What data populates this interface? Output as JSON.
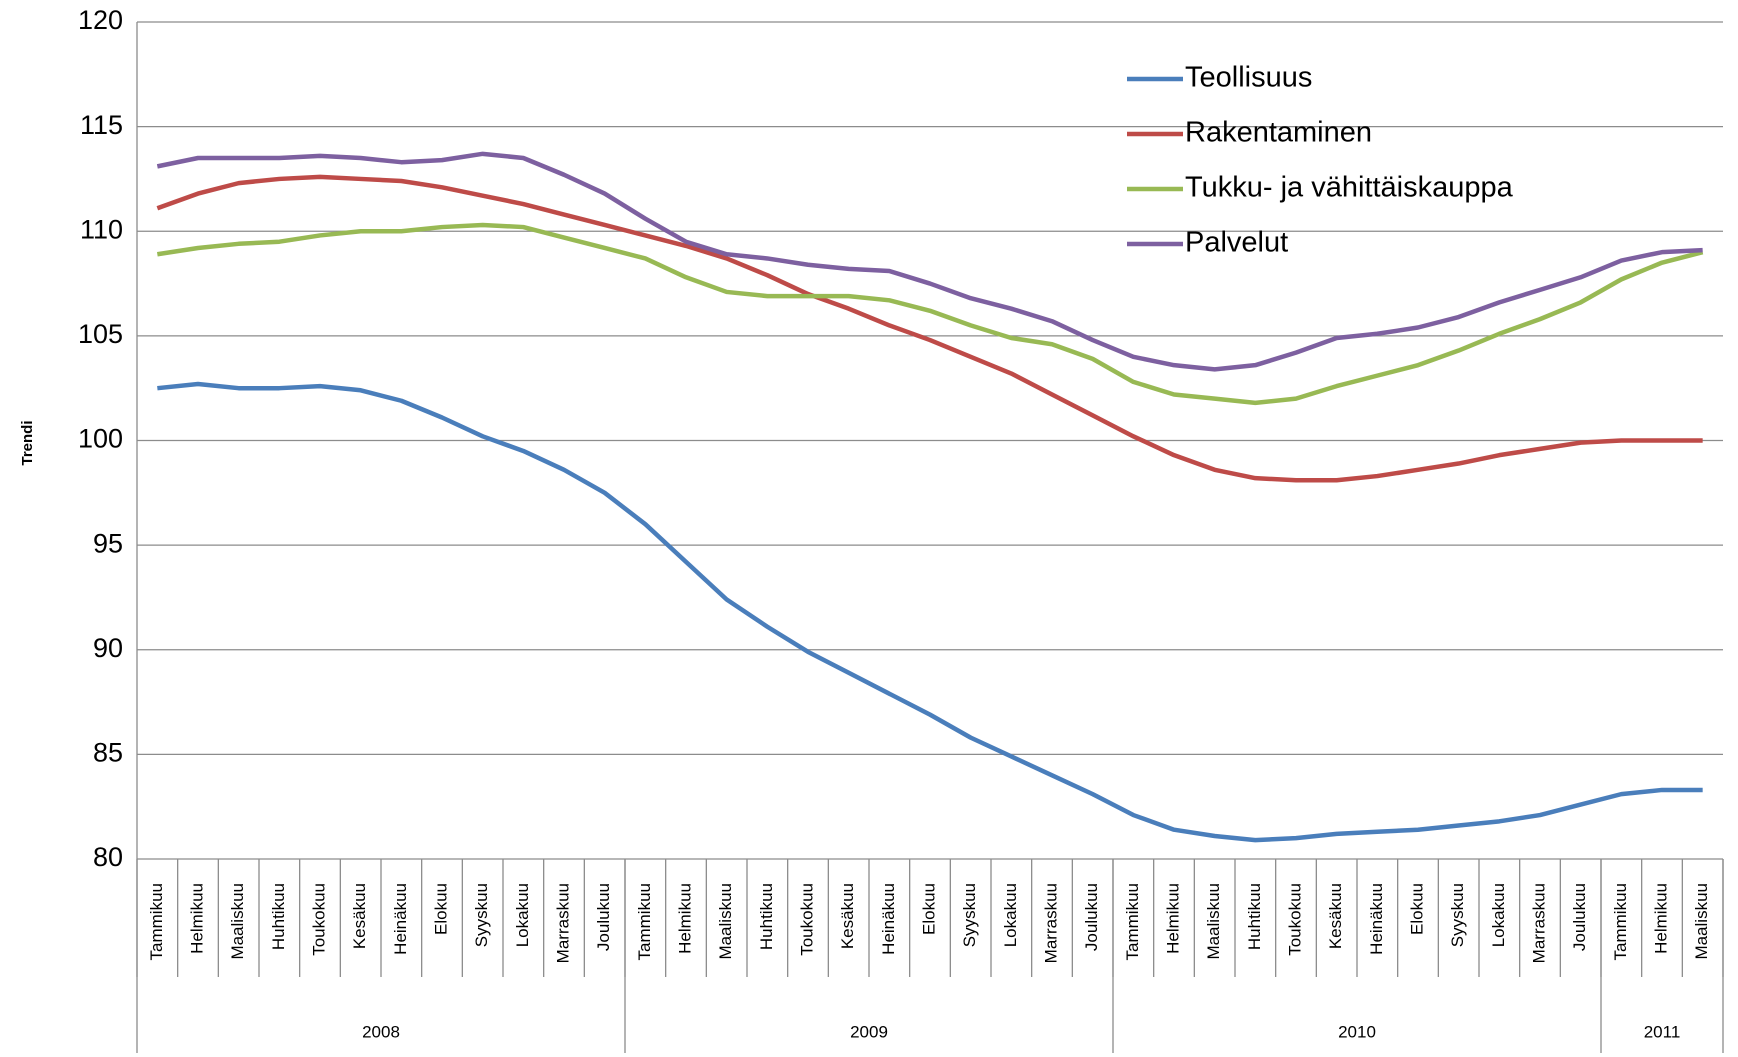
{
  "chart_data": {
    "type": "line",
    "y_label": "Trendi",
    "categories": [
      "Tammikuu",
      "Helmikuu",
      "Maaliskuu",
      "Huhtikuu",
      "Toukokuu",
      "Kesäkuu",
      "Heinäkuu",
      "Elokuu",
      "Syyskuu",
      "Lokakuu",
      "Marraskuu",
      "Joulukuu",
      "Tammikuu",
      "Helmikuu",
      "Maaliskuu",
      "Huhtikuu",
      "Toukokuu",
      "Kesäkuu",
      "Heinäkuu",
      "Elokuu",
      "Syyskuu",
      "Lokakuu",
      "Marraskuu",
      "Joulukuu",
      "Tammikuu",
      "Helmikuu",
      "Maaliskuu",
      "Huhtikuu",
      "Toukokuu",
      "Kesäkuu",
      "Heinäkuu",
      "Elokuu",
      "Syyskuu",
      "Lokakuu",
      "Marraskuu",
      "Joulukuu",
      "Tammikuu",
      "Helmikuu",
      "Maaliskuu"
    ],
    "groups": [
      {
        "label": "2008",
        "span": 12
      },
      {
        "label": "2009",
        "span": 12
      },
      {
        "label": "2010",
        "span": 12
      },
      {
        "label": "2011",
        "span": 3
      }
    ],
    "series": [
      {
        "name": "Teollisuus",
        "color": "#4a7ebb",
        "values": [
          102.5,
          102.7,
          102.5,
          102.5,
          102.6,
          102.4,
          101.9,
          101.1,
          100.2,
          99.5,
          98.6,
          97.5,
          96,
          94.2,
          92.4,
          91.1,
          89.9,
          88.9,
          87.9,
          86.9,
          85.8,
          84.9,
          84.0,
          83.1,
          82.1,
          81.4,
          81.1,
          80.9,
          81.0,
          81.2,
          81.3,
          81.4,
          81.6,
          81.8,
          82.1,
          82.6,
          83.1,
          83.3,
          83.3
        ]
      },
      {
        "name": "Rakentaminen",
        "color": "#be4b48",
        "values": [
          111.1,
          111.8,
          112.3,
          112.5,
          112.6,
          112.5,
          112.4,
          112.1,
          111.7,
          111.3,
          110.8,
          110.3,
          109.8,
          109.3,
          108.7,
          107.9,
          107.0,
          106.3,
          105.5,
          104.8,
          104.0,
          103.2,
          102.2,
          101.2,
          100.2,
          99.3,
          98.6,
          98.2,
          98.1,
          98.1,
          98.3,
          98.6,
          98.9,
          99.3,
          99.6,
          99.9,
          100.0,
          100.0,
          100.0
        ]
      },
      {
        "name": "Tukku- ja vähittäiskauppa",
        "color": "#98b954",
        "values": [
          108.9,
          109.2,
          109.4,
          109.5,
          109.8,
          110.0,
          110.0,
          110.2,
          110.3,
          110.2,
          109.7,
          109.2,
          108.7,
          107.8,
          107.1,
          106.9,
          106.9,
          106.9,
          106.7,
          106.2,
          105.5,
          104.9,
          104.6,
          103.9,
          102.8,
          102.2,
          102.0,
          101.8,
          102.0,
          102.6,
          103.1,
          103.6,
          104.3,
          105.1,
          105.8,
          106.6,
          107.7,
          108.5,
          109.0
        ]
      },
      {
        "name": "Palvelut",
        "color": "#7d60a0",
        "values": [
          113.1,
          113.5,
          113.5,
          113.5,
          113.6,
          113.5,
          113.3,
          113.4,
          113.7,
          113.5,
          112.7,
          111.8,
          110.6,
          109.5,
          108.9,
          108.7,
          108.4,
          108.2,
          108.1,
          107.5,
          106.8,
          106.3,
          105.7,
          104.8,
          104.0,
          103.6,
          103.4,
          103.6,
          104.2,
          104.9,
          105.1,
          105.4,
          105.9,
          106.6,
          107.2,
          107.8,
          108.6,
          109.0,
          109.1
        ]
      }
    ],
    "ylim": [
      80,
      120
    ],
    "yticks": [
      80,
      85,
      90,
      95,
      100,
      105,
      110,
      115,
      120
    ],
    "grid": true,
    "legend": "upper right"
  }
}
